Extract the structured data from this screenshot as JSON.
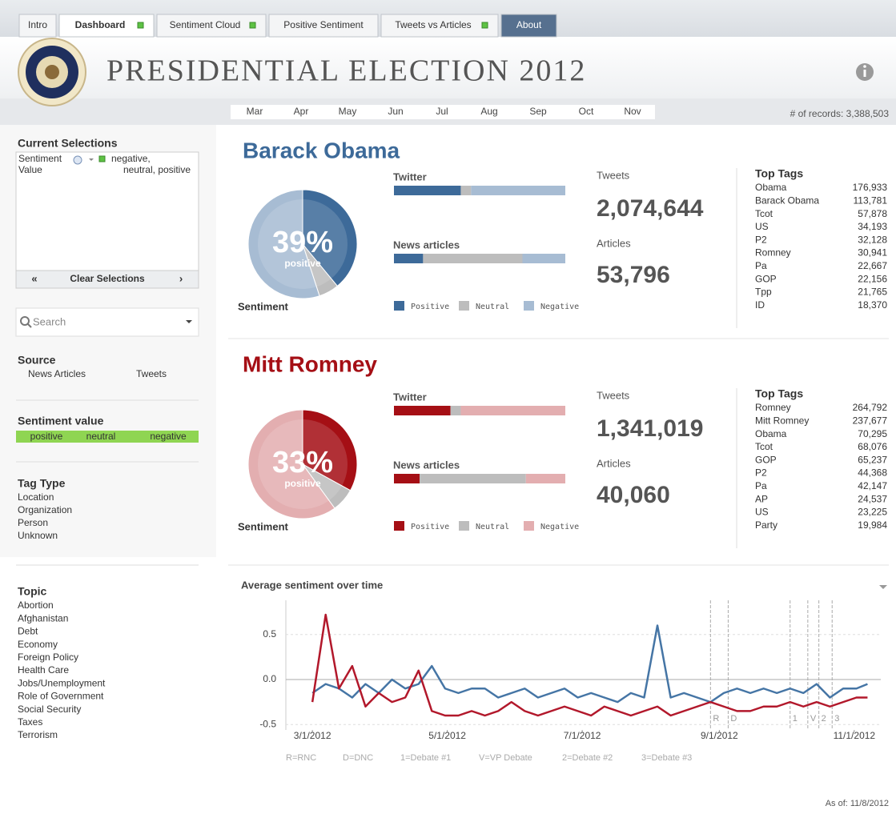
{
  "tabs": [
    {
      "label": "Intro"
    },
    {
      "label": "Dashboard",
      "indicator": true,
      "selected": true
    },
    {
      "label": "Sentiment Cloud",
      "indicator": true
    },
    {
      "label": "Positive Sentiment"
    },
    {
      "label": "Tweets vs Articles",
      "indicator": true
    },
    {
      "label": "About",
      "highlight": true
    }
  ],
  "header": {
    "title": "PRESIDENTIAL ELECTION 2012"
  },
  "months": [
    "Mar",
    "Apr",
    "May",
    "Jun",
    "Jul",
    "Aug",
    "Sep",
    "Oct",
    "Nov"
  ],
  "records": "# of records: 3,388,503",
  "sidebar": {
    "current_selections": {
      "title": "Current Selections",
      "field": "Sentiment",
      "sub": "Value",
      "value_lines": [
        "negative,",
        "neutral, positive"
      ],
      "clear": "Clear Selections"
    },
    "search": "Search",
    "source": {
      "title": "Source",
      "items": [
        "News Articles",
        "Tweets"
      ]
    },
    "sentiment_value": {
      "title": "Sentiment value",
      "items": [
        "positive",
        "neutral",
        "negative"
      ]
    },
    "tag_type": {
      "title": "Tag Type",
      "items": [
        "Location",
        "Organization",
        "Person",
        "Unknown"
      ]
    },
    "topic": {
      "title": "Topic",
      "items": [
        "Abortion",
        "Afghanistan",
        "Debt",
        "Economy",
        "Foreign Policy",
        "Health Care",
        "Jobs/Unemployment",
        "Role of Government",
        "Social Security",
        "Taxes",
        "Terrorism"
      ]
    }
  },
  "legend": [
    "Positive",
    "Neutral",
    "Negative"
  ],
  "candidates": [
    {
      "name": "Barack Obama",
      "color": "#3d6a99",
      "light": "#a7bcd3",
      "pie": {
        "values": [
          39,
          6,
          55
        ],
        "value_label": "39%",
        "caption": "positive",
        "label": "Sentiment"
      },
      "twitter": {
        "title": "Twitter",
        "values": [
          39,
          6,
          55
        ]
      },
      "news": {
        "title": "News articles",
        "values": [
          17,
          58,
          25
        ]
      },
      "tweets": {
        "label": "Tweets",
        "value": "2,074,644"
      },
      "articles": {
        "label": "Articles",
        "value": "53,796"
      },
      "top_tags": {
        "title": "Top Tags",
        "rows": [
          [
            "Obama",
            "176,933"
          ],
          [
            "Barack Obama",
            "113,781"
          ],
          [
            "Tcot",
            "57,878"
          ],
          [
            "US",
            "34,193"
          ],
          [
            "P2",
            "32,128"
          ],
          [
            "Romney",
            "30,941"
          ],
          [
            "Pa",
            "22,667"
          ],
          [
            "GOP",
            "22,156"
          ],
          [
            "Tpp",
            "21,765"
          ],
          [
            "ID",
            "18,370"
          ]
        ]
      }
    },
    {
      "name": "Mitt Romney",
      "color": "#a50f15",
      "light": "#e3aeb0",
      "pie": {
        "values": [
          33,
          7,
          60
        ],
        "value_label": "33%",
        "caption": "positive",
        "label": "Sentiment"
      },
      "twitter": {
        "title": "Twitter",
        "values": [
          33,
          6,
          61
        ]
      },
      "news": {
        "title": "News articles",
        "values": [
          15,
          62,
          23
        ]
      },
      "tweets": {
        "label": "Tweets",
        "value": "1,341,019"
      },
      "articles": {
        "label": "Articles",
        "value": "40,060"
      },
      "top_tags": {
        "title": "Top Tags",
        "rows": [
          [
            "Romney",
            "264,792"
          ],
          [
            "Mitt Romney",
            "237,677"
          ],
          [
            "Obama",
            "70,295"
          ],
          [
            "Tcot",
            "68,076"
          ],
          [
            "GOP",
            "65,237"
          ],
          [
            "P2",
            "44,368"
          ],
          [
            "Pa",
            "42,147"
          ],
          [
            "AP",
            "24,537"
          ],
          [
            "US",
            "23,225"
          ],
          [
            "Party",
            "19,984"
          ]
        ]
      }
    }
  ],
  "chart_data": {
    "type": "line",
    "title": "Average sentiment over time",
    "x": [
      "2012-03-01",
      "2012-03-07",
      "2012-03-13",
      "2012-03-19",
      "2012-03-25",
      "2012-03-31",
      "2012-04-06",
      "2012-04-12",
      "2012-04-18",
      "2012-04-24",
      "2012-04-30",
      "2012-05-06",
      "2012-05-12",
      "2012-05-18",
      "2012-05-24",
      "2012-05-30",
      "2012-06-05",
      "2012-06-11",
      "2012-06-17",
      "2012-06-23",
      "2012-06-29",
      "2012-07-05",
      "2012-07-11",
      "2012-07-17",
      "2012-07-23",
      "2012-07-29",
      "2012-08-04",
      "2012-08-10",
      "2012-08-16",
      "2012-08-22",
      "2012-08-28",
      "2012-09-03",
      "2012-09-09",
      "2012-09-15",
      "2012-09-21",
      "2012-09-27",
      "2012-10-03",
      "2012-10-09",
      "2012-10-15",
      "2012-10-21",
      "2012-10-27",
      "2012-11-02",
      "2012-11-07"
    ],
    "series": [
      {
        "color": "#4575a5",
        "values": [
          -0.15,
          -0.05,
          -0.1,
          -0.2,
          -0.05,
          -0.15,
          0.0,
          -0.1,
          -0.05,
          0.15,
          -0.1,
          -0.15,
          -0.1,
          -0.1,
          -0.2,
          -0.15,
          -0.1,
          -0.2,
          -0.15,
          -0.1,
          -0.2,
          -0.15,
          -0.2,
          -0.25,
          -0.15,
          -0.2,
          0.6,
          -0.2,
          -0.15,
          -0.2,
          -0.25,
          -0.15,
          -0.1,
          -0.15,
          -0.1,
          -0.15,
          -0.1,
          -0.15,
          -0.05,
          -0.2,
          -0.1,
          -0.1,
          -0.05
        ]
      },
      {
        "color": "#b2182b",
        "values": [
          -0.25,
          0.72,
          -0.1,
          0.15,
          -0.3,
          -0.15,
          -0.25,
          -0.2,
          0.1,
          -0.35,
          -0.4,
          -0.4,
          -0.35,
          -0.4,
          -0.35,
          -0.25,
          -0.35,
          -0.4,
          -0.35,
          -0.3,
          -0.35,
          -0.4,
          -0.3,
          -0.35,
          -0.4,
          -0.35,
          -0.3,
          -0.4,
          -0.35,
          -0.3,
          -0.25,
          -0.3,
          -0.35,
          -0.35,
          -0.3,
          -0.3,
          -0.25,
          -0.3,
          -0.25,
          -0.3,
          -0.25,
          -0.2,
          -0.2
        ]
      }
    ],
    "xlim": [
      "2012-02-18",
      "2012-11-13"
    ],
    "xticks": [
      {
        "value": "2012-03-01",
        "label": "3/1/2012"
      },
      {
        "value": "2012-05-01",
        "label": "5/1/2012"
      },
      {
        "value": "2012-07-01",
        "label": "7/1/2012"
      },
      {
        "value": "2012-09-01",
        "label": "9/1/2012"
      },
      {
        "value": "2012-11-01",
        "label": "11/1/2012"
      }
    ],
    "ylim": [
      -0.56,
      0.88
    ],
    "yticks": [
      -0.5,
      {
        "value": 0,
        "label": "0.0"
      },
      0.5
    ],
    "grid": true,
    "events": [
      {
        "date": "2012-08-28",
        "label": "R"
      },
      {
        "date": "2012-09-05",
        "label": "D"
      },
      {
        "date": "2012-10-03",
        "label": "1"
      },
      {
        "date": "2012-10-11",
        "label": "V"
      },
      {
        "date": "2012-10-16",
        "label": "2"
      },
      {
        "date": "2012-10-22",
        "label": "3"
      }
    ],
    "event_legend": [
      "R=RNC",
      "D=DNC",
      "1=Debate #1",
      "V=VP Debate",
      "2=Debate #2",
      "3=Debate #3"
    ]
  },
  "as_of": "As of: 11/8/2012"
}
